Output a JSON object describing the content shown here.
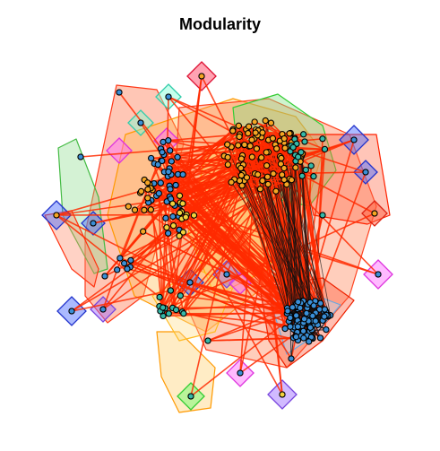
{
  "title": "Modularity",
  "palette": {
    "edge_red": "#ff2a00",
    "edge_black": "#111111",
    "node_orange": "#f5a623",
    "node_blue": "#3a8fd6",
    "node_teal": "#35b8a8",
    "node_yellow": "#f2d23c",
    "node_outline": "#000000"
  }
}
